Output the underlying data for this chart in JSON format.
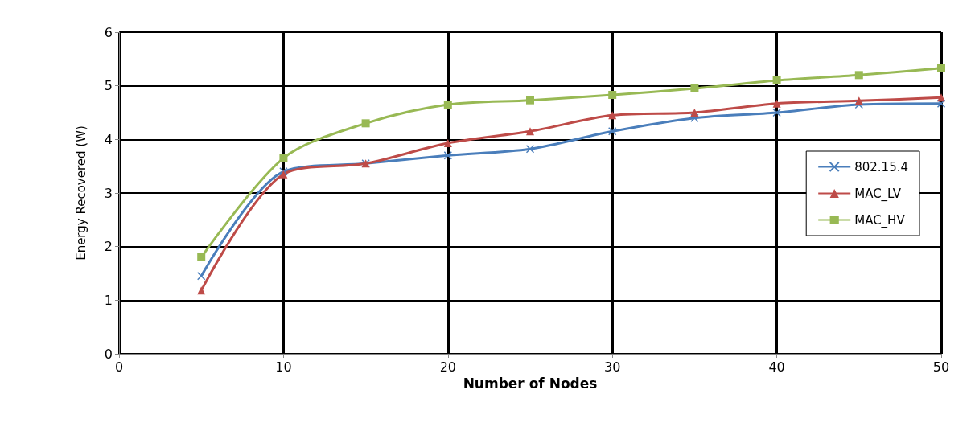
{
  "chart_data": {
    "type": "line",
    "xlabel": "Number of Nodes",
    "ylabel": "Energy Recovered (W)",
    "x": [
      5,
      10,
      15,
      20,
      25,
      30,
      35,
      40,
      45,
      50
    ],
    "xlim": [
      0,
      50
    ],
    "xticks": [
      0,
      10,
      20,
      30,
      40,
      50
    ],
    "ylim": [
      0,
      6
    ],
    "yticks": [
      0,
      1,
      2,
      3,
      4,
      5,
      6
    ],
    "grid": true,
    "legend": "right",
    "series": [
      {
        "name": "802.15.4",
        "color": "#4a7ebb",
        "marker": "cross",
        "values": [
          1.45,
          3.4,
          3.55,
          3.7,
          3.82,
          4.15,
          4.4,
          4.5,
          4.65,
          4.67
        ]
      },
      {
        "name": "MAC_LV",
        "color": "#be4b48",
        "marker": "triangle",
        "values": [
          1.18,
          3.35,
          3.55,
          3.93,
          4.15,
          4.45,
          4.5,
          4.67,
          4.72,
          4.78
        ]
      },
      {
        "name": "MAC_HV",
        "color": "#98b954",
        "marker": "square",
        "values": [
          1.8,
          3.65,
          4.3,
          4.65,
          4.73,
          4.83,
          4.95,
          5.1,
          5.2,
          5.33
        ]
      }
    ]
  }
}
